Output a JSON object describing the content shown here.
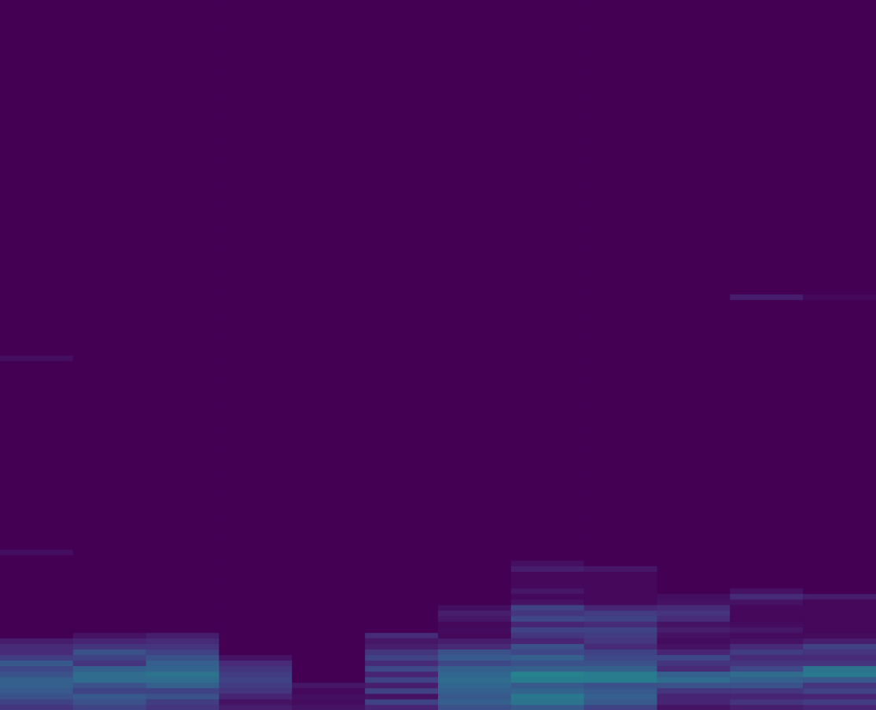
{
  "chart_data": {
    "type": "heatmap",
    "tick_labels": false,
    "cells": [
      [
        0.15,
        0.2,
        0.25,
        0.28,
        0.3,
        0.3,
        0.25,
        0.22,
        0.28,
        0.18,
        0.12,
        0.12,
        0.08,
        0,
        0,
        0,
        0,
        0,
        0,
        0,
        0,
        0,
        0,
        0,
        0,
        0,
        0,
        0,
        0.04,
        0,
        0,
        0,
        0,
        0,
        0,
        0,
        0,
        0,
        0,
        0,
        0,
        0,
        0,
        0,
        0,
        0,
        0,
        0,
        0,
        0,
        0,
        0,
        0,
        0,
        0,
        0,
        0,
        0,
        0,
        0,
        0,
        0,
        0,
        0.04,
        0,
        0,
        0,
        0,
        0,
        0,
        0,
        0,
        0,
        0,
        0,
        0,
        0,
        0,
        0,
        0,
        0,
        0,
        0,
        0,
        0,
        0,
        0,
        0,
        0,
        0,
        0,
        0,
        0,
        0,
        0,
        0,
        0,
        0,
        0,
        0,
        0,
        0,
        0,
        0,
        0,
        0,
        0,
        0,
        0,
        0,
        0,
        0,
        0,
        0,
        0,
        0,
        0,
        0,
        0,
        0,
        0,
        0,
        0,
        0,
        0,
        0,
        0,
        0
      ],
      [
        0.2,
        0.25,
        0.28,
        0.2,
        0.25,
        0.35,
        0.35,
        0.3,
        0.15,
        0.2,
        0.25,
        0.15,
        0.1,
        0.05,
        0,
        0,
        0,
        0,
        0,
        0,
        0,
        0,
        0,
        0,
        0,
        0,
        0,
        0,
        0,
        0,
        0,
        0,
        0,
        0,
        0,
        0,
        0,
        0,
        0,
        0,
        0,
        0,
        0,
        0,
        0,
        0,
        0,
        0,
        0,
        0,
        0,
        0,
        0,
        0,
        0,
        0,
        0,
        0,
        0,
        0,
        0,
        0,
        0,
        0,
        0,
        0,
        0,
        0,
        0,
        0,
        0,
        0,
        0,
        0,
        0,
        0,
        0,
        0,
        0,
        0,
        0,
        0,
        0,
        0,
        0,
        0,
        0,
        0,
        0,
        0,
        0,
        0,
        0,
        0,
        0,
        0,
        0,
        0,
        0,
        0,
        0,
        0,
        0,
        0,
        0,
        0,
        0,
        0,
        0,
        0,
        0,
        0,
        0,
        0,
        0,
        0,
        0,
        0,
        0,
        0,
        0,
        0,
        0,
        0,
        0,
        0,
        0,
        0
      ],
      [
        0.15,
        0.18,
        0.25,
        0.2,
        0.3,
        0.35,
        0.38,
        0.32,
        0.3,
        0.25,
        0.2,
        0.15,
        0.12,
        0.08,
        0,
        0,
        0,
        0,
        0,
        0,
        0,
        0,
        0,
        0,
        0,
        0,
        0,
        0,
        0,
        0,
        0,
        0,
        0,
        0,
        0,
        0,
        0,
        0,
        0,
        0,
        0,
        0,
        0,
        0,
        0,
        0,
        0,
        0,
        0,
        0,
        0,
        0,
        0,
        0,
        0,
        0,
        0,
        0,
        0,
        0,
        0,
        0,
        0,
        0,
        0,
        0,
        0,
        0,
        0,
        0,
        0,
        0,
        0,
        0,
        0,
        0,
        0,
        0,
        0,
        0,
        0,
        0,
        0,
        0,
        0,
        0,
        0,
        0,
        0,
        0,
        0,
        0,
        0,
        0,
        0,
        0,
        0,
        0,
        0,
        0,
        0,
        0,
        0,
        0,
        0,
        0,
        0,
        0,
        0,
        0,
        0,
        0,
        0,
        0,
        0,
        0,
        0,
        0,
        0,
        0,
        0,
        0,
        0,
        0,
        0,
        0,
        0,
        0
      ],
      [
        0.08,
        0.05,
        0.1,
        0.15,
        0.18,
        0.2,
        0.18,
        0.15,
        0.12,
        0.05,
        0,
        0,
        0,
        0,
        0,
        0,
        0,
        0,
        0,
        0,
        0,
        0,
        0,
        0,
        0,
        0,
        0,
        0,
        0,
        0,
        0,
        0,
        0,
        0,
        0,
        0,
        0,
        0,
        0,
        0,
        0,
        0,
        0,
        0,
        0,
        0,
        0,
        0,
        0,
        0,
        0,
        0,
        0,
        0,
        0,
        0,
        0,
        0,
        0,
        0,
        0,
        0,
        0,
        0,
        0,
        0,
        0,
        0,
        0,
        0,
        0,
        0,
        0,
        0,
        0,
        0,
        0,
        0,
        0,
        0,
        0,
        0,
        0,
        0,
        0,
        0,
        0,
        0,
        0,
        0,
        0,
        0,
        0,
        0,
        0,
        0,
        0,
        0,
        0,
        0,
        0,
        0,
        0,
        0,
        0,
        0,
        0,
        0,
        0,
        0,
        0,
        0,
        0,
        0,
        0,
        0,
        0,
        0,
        0,
        0,
        0,
        0,
        0,
        0,
        0,
        0,
        0,
        0
      ],
      [
        0.05,
        0.03,
        0.04,
        0.02,
        0.06,
        0,
        0,
        0,
        0,
        0,
        0,
        0,
        0,
        0,
        0,
        0,
        0,
        0,
        0,
        0,
        0,
        0,
        0,
        0,
        0,
        0,
        0,
        0,
        0,
        0,
        0,
        0,
        0,
        0,
        0,
        0,
        0,
        0,
        0,
        0,
        0,
        0,
        0,
        0,
        0,
        0,
        0,
        0,
        0,
        0,
        0,
        0,
        0,
        0,
        0,
        0,
        0,
        0,
        0,
        0,
        0,
        0,
        0,
        0,
        0,
        0,
        0,
        0,
        0,
        0,
        0,
        0,
        0,
        0,
        0,
        0,
        0,
        0,
        0,
        0,
        0,
        0,
        0,
        0,
        0,
        0,
        0,
        0,
        0,
        0,
        0,
        0,
        0,
        0,
        0,
        0,
        0,
        0,
        0,
        0,
        0,
        0,
        0,
        0,
        0,
        0,
        0,
        0,
        0,
        0,
        0,
        0,
        0,
        0,
        0,
        0,
        0,
        0,
        0,
        0,
        0,
        0,
        0,
        0,
        0,
        0,
        0,
        0
      ],
      [
        0.1,
        0.2,
        0.05,
        0.2,
        0.08,
        0.2,
        0.1,
        0.22,
        0.12,
        0.2,
        0.15,
        0.08,
        0.06,
        0.12,
        0,
        0,
        0,
        0,
        0,
        0,
        0,
        0,
        0,
        0,
        0,
        0,
        0,
        0,
        0,
        0,
        0,
        0,
        0,
        0,
        0,
        0,
        0,
        0,
        0,
        0,
        0,
        0,
        0,
        0,
        0,
        0,
        0,
        0,
        0,
        0,
        0,
        0,
        0,
        0,
        0,
        0,
        0,
        0,
        0,
        0,
        0,
        0,
        0,
        0,
        0,
        0,
        0,
        0,
        0,
        0,
        0,
        0,
        0,
        0,
        0,
        0,
        0,
        0,
        0,
        0,
        0,
        0,
        0,
        0,
        0,
        0,
        0,
        0,
        0,
        0,
        0,
        0,
        0,
        0,
        0,
        0,
        0,
        0,
        0,
        0,
        0,
        0,
        0,
        0,
        0,
        0,
        0,
        0,
        0,
        0,
        0,
        0,
        0,
        0,
        0,
        0,
        0,
        0,
        0,
        0,
        0,
        0,
        0,
        0,
        0,
        0,
        0,
        0
      ],
      [
        0.25,
        0.3,
        0.28,
        0.3,
        0.33,
        0.35,
        0.33,
        0.3,
        0.22,
        0.28,
        0.25,
        0.12,
        0.08,
        0.02,
        0.03,
        0.02,
        0.06,
        0.08,
        0.04,
        0,
        0,
        0,
        0,
        0,
        0,
        0,
        0,
        0,
        0,
        0,
        0,
        0,
        0,
        0,
        0,
        0,
        0,
        0,
        0,
        0,
        0,
        0,
        0,
        0,
        0,
        0,
        0,
        0,
        0,
        0,
        0,
        0,
        0,
        0,
        0,
        0,
        0,
        0,
        0,
        0,
        0,
        0,
        0,
        0,
        0,
        0,
        0,
        0,
        0,
        0,
        0,
        0,
        0,
        0,
        0,
        0,
        0,
        0,
        0,
        0,
        0,
        0,
        0,
        0,
        0,
        0,
        0,
        0,
        0,
        0,
        0,
        0,
        0,
        0,
        0,
        0,
        0,
        0,
        0,
        0,
        0,
        0,
        0,
        0,
        0,
        0,
        0,
        0,
        0,
        0,
        0,
        0,
        0,
        0,
        0,
        0,
        0,
        0,
        0,
        0,
        0,
        0,
        0,
        0,
        0,
        0,
        0,
        0
      ],
      [
        0.28,
        0.38,
        0.4,
        0.32,
        0.28,
        0.42,
        0.45,
        0.3,
        0.25,
        0.3,
        0.22,
        0.25,
        0.1,
        0.15,
        0.2,
        0.1,
        0.22,
        0.15,
        0.2,
        0.05,
        0.02,
        0.06,
        0.02,
        0.02,
        0.02,
        0.08,
        0.04,
        0,
        0,
        0,
        0,
        0,
        0,
        0,
        0,
        0,
        0,
        0,
        0,
        0,
        0,
        0,
        0,
        0,
        0,
        0,
        0,
        0,
        0,
        0,
        0,
        0,
        0,
        0,
        0,
        0,
        0,
        0,
        0,
        0,
        0,
        0,
        0,
        0,
        0,
        0,
        0,
        0,
        0,
        0,
        0,
        0,
        0,
        0,
        0,
        0,
        0,
        0,
        0,
        0,
        0,
        0,
        0,
        0,
        0,
        0,
        0,
        0,
        0,
        0,
        0,
        0,
        0,
        0,
        0,
        0,
        0,
        0,
        0,
        0,
        0,
        0,
        0,
        0,
        0,
        0,
        0,
        0,
        0,
        0,
        0,
        0,
        0,
        0,
        0,
        0,
        0,
        0,
        0,
        0,
        0,
        0,
        0,
        0,
        0,
        0,
        0,
        0
      ],
      [
        0.2,
        0.28,
        0.3,
        0.28,
        0.25,
        0.42,
        0.42,
        0.3,
        0.25,
        0.22,
        0.2,
        0.12,
        0.16,
        0.18,
        0.2,
        0.12,
        0.2,
        0.18,
        0.1,
        0.02,
        0.02,
        0.02,
        0.02,
        0.02,
        0.02,
        0.06,
        0,
        0,
        0,
        0,
        0,
        0,
        0,
        0,
        0,
        0,
        0,
        0,
        0,
        0,
        0,
        0,
        0,
        0,
        0,
        0,
        0,
        0,
        0,
        0,
        0,
        0,
        0,
        0,
        0,
        0,
        0,
        0,
        0,
        0,
        0,
        0,
        0,
        0,
        0,
        0,
        0,
        0,
        0,
        0,
        0,
        0,
        0,
        0,
        0,
        0,
        0,
        0,
        0,
        0,
        0,
        0,
        0,
        0,
        0,
        0,
        0,
        0,
        0,
        0,
        0,
        0,
        0,
        0,
        0,
        0,
        0,
        0,
        0,
        0,
        0,
        0,
        0,
        0,
        0,
        0,
        0,
        0,
        0,
        0,
        0,
        0,
        0,
        0,
        0,
        0,
        0,
        0,
        0,
        0,
        0,
        0,
        0,
        0,
        0,
        0,
        0,
        0
      ],
      [
        0.05,
        0.1,
        0.1,
        0.15,
        0.25,
        0.35,
        0.3,
        0.12,
        0.15,
        0.22,
        0.1,
        0.05,
        0.03,
        0.05,
        0.08,
        0.05,
        0.12,
        0.15,
        0.12,
        0.05,
        0.04,
        0,
        0,
        0,
        0,
        0,
        0,
        0,
        0,
        0,
        0,
        0,
        0,
        0,
        0,
        0,
        0,
        0,
        0,
        0,
        0,
        0,
        0,
        0,
        0,
        0,
        0,
        0,
        0,
        0,
        0,
        0,
        0,
        0,
        0,
        0,
        0,
        0,
        0,
        0,
        0,
        0,
        0,
        0,
        0,
        0,
        0,
        0,
        0,
        0,
        0,
        0,
        0,
        0,
        0,
        0,
        0,
        0,
        0,
        0,
        0,
        0,
        0,
        0,
        0,
        0,
        0,
        0,
        0,
        0,
        0,
        0,
        0,
        0,
        0,
        0,
        0,
        0,
        0,
        0,
        0,
        0,
        0,
        0,
        0,
        0,
        0,
        0,
        0,
        0,
        0,
        0,
        0,
        0,
        0,
        0,
        0,
        0,
        0,
        0,
        0,
        0,
        0,
        0,
        0,
        0,
        0,
        0
      ],
      [
        0.08,
        0.15,
        0.1,
        0.15,
        0.25,
        0.3,
        0.35,
        0.22,
        0.15,
        0.12,
        0.18,
        0.12,
        0.05,
        0.03,
        0.06,
        0.03,
        0.02,
        0.02,
        0.02,
        0.05,
        0.12,
        0.05,
        0,
        0,
        0,
        0,
        0,
        0,
        0,
        0,
        0,
        0,
        0,
        0,
        0,
        0,
        0,
        0,
        0,
        0,
        0,
        0,
        0,
        0,
        0,
        0,
        0,
        0,
        0,
        0,
        0,
        0,
        0,
        0,
        0,
        0,
        0,
        0,
        0,
        0,
        0,
        0,
        0,
        0,
        0,
        0,
        0,
        0,
        0,
        0,
        0,
        0,
        0,
        0,
        0.08,
        0,
        0,
        0,
        0,
        0,
        0,
        0,
        0,
        0,
        0,
        0,
        0,
        0,
        0,
        0,
        0,
        0,
        0,
        0,
        0,
        0,
        0,
        0,
        0,
        0,
        0,
        0,
        0,
        0,
        0,
        0,
        0,
        0,
        0,
        0,
        0,
        0,
        0,
        0,
        0,
        0,
        0,
        0,
        0,
        0,
        0,
        0,
        0,
        0,
        0,
        0,
        0,
        0
      ],
      [
        0.1,
        0.18,
        0.1,
        0.2,
        0.15,
        0.28,
        0.4,
        0.38,
        0.15,
        0.12,
        0.15,
        0.2,
        0.08,
        0.03,
        0.02,
        0.02,
        0.02,
        0.02,
        0.02,
        0.02,
        0.08,
        0,
        0,
        0,
        0,
        0,
        0,
        0,
        0,
        0,
        0,
        0,
        0,
        0,
        0,
        0,
        0,
        0,
        0,
        0,
        0,
        0,
        0,
        0,
        0,
        0,
        0,
        0,
        0,
        0,
        0,
        0,
        0,
        0,
        0,
        0,
        0,
        0,
        0,
        0,
        0,
        0,
        0,
        0,
        0,
        0,
        0,
        0,
        0,
        0,
        0,
        0,
        0,
        0,
        0.02,
        0,
        0,
        0,
        0,
        0,
        0,
        0,
        0,
        0,
        0,
        0,
        0,
        0,
        0,
        0,
        0,
        0,
        0,
        0,
        0,
        0,
        0,
        0,
        0,
        0,
        0,
        0,
        0,
        0,
        0,
        0,
        0,
        0,
        0,
        0,
        0,
        0,
        0,
        0,
        0,
        0,
        0,
        0,
        0,
        0,
        0,
        0,
        0,
        0,
        0,
        0,
        0,
        0
      ]
    ]
  }
}
